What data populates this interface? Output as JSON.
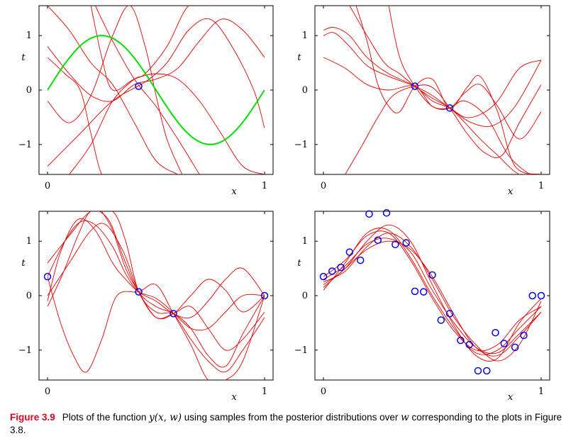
{
  "chart_data": [
    {
      "type": "line",
      "panel": "top-left",
      "xlabel": "x",
      "ylabel": "t",
      "xlim": [
        0,
        1
      ],
      "ylim": [
        -1.55,
        1.55
      ],
      "xticks": [
        "0",
        "1"
      ],
      "yticks": [
        "−1",
        "0",
        "1"
      ],
      "true_function": {
        "color": "#00dd00",
        "formula": "sin(2πx)"
      },
      "points": [
        {
          "x": 0.42,
          "y": 0.07
        }
      ],
      "sample_curves_color": "#e00000",
      "sample_curves": [
        {
          "x": [
            0,
            0.08,
            0.15,
            0.2,
            0.25,
            0.3
          ],
          "y": [
            0.6,
            0.3,
            0.0,
            -0.8,
            -1.55,
            -1.55
          ]
        },
        {
          "x": [
            0,
            0.1,
            0.2,
            0.3,
            0.4,
            0.5,
            0.6
          ],
          "y": [
            1.55,
            1.1,
            0.5,
            0.1,
            -0.6,
            -1.3,
            -1.55
          ]
        },
        {
          "x": [
            0.22,
            0.3,
            0.4,
            0.5,
            0.6,
            0.7
          ],
          "y": [
            1.55,
            0.9,
            0.2,
            -0.3,
            -0.9,
            -1.55
          ]
        },
        {
          "x": [
            0,
            0.15,
            0.3,
            0.45,
            0.55,
            0.65,
            0.75,
            0.85,
            0.95,
            1.0
          ],
          "y": [
            -1.4,
            -0.8,
            -0.2,
            0.15,
            0.5,
            1.1,
            1.3,
            0.8,
            0.0,
            -0.7
          ]
        },
        {
          "x": [
            0,
            0.1,
            0.2,
            0.3,
            0.38,
            0.45,
            0.5,
            0.55,
            0.62
          ],
          "y": [
            -0.2,
            -0.6,
            -0.1,
            1.0,
            1.55,
            0.8,
            -0.1,
            -0.9,
            -1.55
          ]
        },
        {
          "x": [
            0,
            0.1,
            0.2,
            0.3,
            0.4,
            0.5,
            0.6,
            0.7,
            0.8,
            0.9,
            1.0
          ],
          "y": [
            0.8,
            0.3,
            -0.1,
            -0.2,
            0.1,
            0.2,
            0.4,
            0.9,
            1.3,
            1.1,
            0.6
          ]
        },
        {
          "x": [
            0.1,
            0.2,
            0.3,
            0.4,
            0.45,
            0.55,
            0.65,
            0.75
          ],
          "y": [
            -1.55,
            -1.0,
            -0.2,
            0.2,
            0.3,
            0.8,
            1.55,
            1.55
          ]
        },
        {
          "x": [
            0.2,
            0.25,
            0.3,
            0.4,
            0.5,
            0.6,
            0.7,
            0.8,
            0.9,
            1.0
          ],
          "y": [
            1.55,
            0.6,
            0.0,
            0.2,
            0.3,
            0.2,
            -0.2,
            -0.8,
            -1.4,
            -1.55
          ]
        }
      ]
    },
    {
      "type": "line",
      "panel": "top-right",
      "xlabel": "x",
      "ylabel": "t",
      "xlim": [
        0,
        1
      ],
      "ylim": [
        -1.55,
        1.55
      ],
      "xticks": [
        "0",
        "1"
      ],
      "yticks": [
        "−1",
        "0",
        "1"
      ],
      "points": [
        {
          "x": 0.42,
          "y": 0.07
        },
        {
          "x": 0.58,
          "y": -0.33
        }
      ],
      "sample_curves_color": "#e00000",
      "sample_curves": [
        {
          "x": [
            0,
            0.05,
            0.12,
            0.2,
            0.3,
            0.42,
            0.5,
            0.58,
            0.65,
            0.72,
            0.8,
            0.9,
            1.0
          ],
          "y": [
            1.1,
            1.15,
            1.0,
            0.6,
            0.3,
            0.07,
            -0.2,
            -0.33,
            -0.5,
            -0.45,
            -0.2,
            0.4,
            0.55
          ]
        },
        {
          "x": [
            0,
            0.05,
            0.12,
            0.2,
            0.3,
            0.42,
            0.5,
            0.58,
            0.68,
            0.78,
            0.88,
            1.0
          ],
          "y": [
            1.0,
            1.05,
            0.8,
            0.45,
            0.25,
            0.07,
            -0.1,
            -0.33,
            -0.6,
            -0.65,
            -0.3,
            0.55
          ]
        },
        {
          "x": [
            0,
            0.1,
            0.2,
            0.3,
            0.42,
            0.5,
            0.58,
            0.65,
            0.72,
            0.8,
            0.9,
            1.0
          ],
          "y": [
            0.6,
            0.4,
            0.1,
            0.0,
            0.07,
            -0.3,
            -0.33,
            -0.05,
            0.1,
            -0.3,
            -0.9,
            -0.4
          ]
        },
        {
          "x": [
            0.12,
            0.2,
            0.28,
            0.35,
            0.42,
            0.5,
            0.58,
            0.65,
            0.72,
            0.8,
            0.9,
            1.0
          ],
          "y": [
            1.55,
            1.0,
            0.5,
            0.3,
            0.07,
            -0.15,
            -0.33,
            -0.6,
            -0.9,
            -1.2,
            -1.55,
            -1.55
          ]
        },
        {
          "x": [
            0.1,
            0.18,
            0.25,
            0.32,
            0.42,
            0.5,
            0.58,
            0.66,
            0.74,
            0.82,
            0.9,
            1.0
          ],
          "y": [
            -1.55,
            -1.0,
            -0.5,
            -0.1,
            0.07,
            0.05,
            -0.33,
            -0.8,
            -1.15,
            -1.2,
            -0.6,
            0.1
          ]
        },
        {
          "x": [
            0.15,
            0.2,
            0.25,
            0.3,
            0.35,
            0.42,
            0.5,
            0.58,
            0.66,
            0.72,
            0.8,
            0.88,
            1.0
          ],
          "y": [
            1.55,
            0.9,
            0.1,
            -0.3,
            -0.4,
            0.07,
            0.2,
            -0.33,
            0.05,
            0.25,
            -0.4,
            -1.4,
            -1.55
          ]
        },
        {
          "x": [
            0.3,
            0.35,
            0.42,
            0.5,
            0.58,
            0.65,
            0.75,
            0.85,
            0.95,
            1.0
          ],
          "y": [
            1.55,
            0.6,
            0.07,
            -0.3,
            -0.33,
            -0.2,
            -0.5,
            -1.2,
            -1.55,
            -1.55
          ]
        }
      ]
    },
    {
      "type": "line",
      "panel": "bottom-left",
      "xlabel": "x",
      "ylabel": "t",
      "xlim": [
        0,
        1
      ],
      "ylim": [
        -1.55,
        1.55
      ],
      "xticks": [
        "0",
        "1"
      ],
      "yticks": [
        "−1",
        "0",
        "1"
      ],
      "points": [
        {
          "x": 0.0,
          "y": 0.35
        },
        {
          "x": 0.42,
          "y": 0.07
        },
        {
          "x": 0.58,
          "y": -0.33
        },
        {
          "x": 1.0,
          "y": 0.0
        }
      ],
      "sample_curves_color": "#e00000",
      "sample_curves": [
        {
          "x": [
            0,
            0.08,
            0.15,
            0.22,
            0.3,
            0.36,
            0.42,
            0.5,
            0.58,
            0.66,
            0.74,
            0.82,
            0.9,
            1.0
          ],
          "y": [
            0.35,
            1.0,
            1.35,
            1.3,
            0.9,
            0.4,
            0.07,
            -0.1,
            -0.33,
            -0.4,
            -0.1,
            0.3,
            0.5,
            0.0
          ]
        },
        {
          "x": [
            0,
            0.06,
            0.12,
            0.18,
            0.25,
            0.32,
            0.42,
            0.5,
            0.58,
            0.66,
            0.74,
            0.82,
            0.9,
            1.0
          ],
          "y": [
            0.35,
            -0.5,
            -1.1,
            -1.4,
            -0.8,
            0.0,
            0.07,
            0.2,
            -0.33,
            -0.9,
            -1.55,
            -1.55,
            -1.2,
            0.0
          ]
        },
        {
          "x": [
            0,
            0.07,
            0.14,
            0.2,
            0.28,
            0.35,
            0.42,
            0.5,
            0.58,
            0.66,
            0.74,
            0.82,
            0.9,
            1.0
          ],
          "y": [
            -0.2,
            0.4,
            1.1,
            1.55,
            1.4,
            0.7,
            0.07,
            -0.2,
            -0.33,
            -0.6,
            -0.6,
            -0.3,
            0.0,
            0.0
          ]
        },
        {
          "x": [
            0,
            0.1,
            0.2,
            0.27,
            0.35,
            0.42,
            0.5,
            0.58,
            0.66,
            0.74,
            0.82,
            0.9,
            1.0
          ],
          "y": [
            0.0,
            0.6,
            1.2,
            1.3,
            0.8,
            0.07,
            -0.4,
            -0.33,
            0.0,
            0.3,
            0.1,
            -0.3,
            0.0
          ]
        },
        {
          "x": [
            0,
            0.1,
            0.2,
            0.3,
            0.36,
            0.42,
            0.5,
            0.58,
            0.66,
            0.74,
            0.82,
            0.9,
            1.0
          ],
          "y": [
            0.6,
            1.1,
            1.55,
            1.55,
            1.0,
            0.07,
            -0.3,
            -0.33,
            -0.6,
            -1.1,
            -1.3,
            -0.7,
            0.0
          ]
        },
        {
          "x": [
            0,
            0.06,
            0.14,
            0.22,
            0.3,
            0.36,
            0.42,
            0.5,
            0.58,
            0.66,
            0.74,
            0.82,
            0.9,
            1.0
          ],
          "y": [
            -0.1,
            0.8,
            1.4,
            1.2,
            0.6,
            0.3,
            0.07,
            -0.05,
            -0.33,
            -0.8,
            -1.2,
            -1.4,
            -1.0,
            -0.4
          ]
        },
        {
          "x": [
            0.25,
            0.3,
            0.36,
            0.42,
            0.5,
            0.58,
            0.66,
            0.74,
            0.82,
            0.9,
            1.0
          ],
          "y": [
            1.55,
            1.2,
            0.5,
            0.07,
            -0.4,
            -0.33,
            -0.2,
            -0.6,
            -1.0,
            -0.8,
            -0.3
          ]
        }
      ]
    },
    {
      "type": "line",
      "panel": "bottom-right",
      "xlabel": "x",
      "ylabel": "t",
      "xlim": [
        0,
        1
      ],
      "ylim": [
        -1.55,
        1.55
      ],
      "xticks": [
        "0",
        "1"
      ],
      "yticks": [
        "−1",
        "0",
        "1"
      ],
      "points": [
        {
          "x": 0.0,
          "y": 0.35
        },
        {
          "x": 0.04,
          "y": 0.45
        },
        {
          "x": 0.08,
          "y": 0.52
        },
        {
          "x": 0.12,
          "y": 0.8
        },
        {
          "x": 0.17,
          "y": 0.65
        },
        {
          "x": 0.21,
          "y": 1.5
        },
        {
          "x": 0.25,
          "y": 1.02
        },
        {
          "x": 0.29,
          "y": 1.52
        },
        {
          "x": 0.33,
          "y": 0.94
        },
        {
          "x": 0.38,
          "y": 0.97
        },
        {
          "x": 0.42,
          "y": 0.08
        },
        {
          "x": 0.46,
          "y": 0.07
        },
        {
          "x": 0.5,
          "y": 0.38
        },
        {
          "x": 0.54,
          "y": -0.45
        },
        {
          "x": 0.58,
          "y": -0.33
        },
        {
          "x": 0.63,
          "y": -0.82
        },
        {
          "x": 0.67,
          "y": -0.9
        },
        {
          "x": 0.71,
          "y": -1.38
        },
        {
          "x": 0.75,
          "y": -1.38
        },
        {
          "x": 0.79,
          "y": -0.68
        },
        {
          "x": 0.83,
          "y": -0.88
        },
        {
          "x": 0.88,
          "y": -0.95
        },
        {
          "x": 0.92,
          "y": -0.73
        },
        {
          "x": 0.96,
          "y": 0.0
        },
        {
          "x": 1.0,
          "y": 0.0
        }
      ],
      "sample_curves_color": "#e00000",
      "sample_curves": [
        {
          "x": [
            0,
            0.1,
            0.2,
            0.3,
            0.4,
            0.5,
            0.6,
            0.7,
            0.8,
            0.9,
            1.0
          ],
          "y": [
            0.1,
            0.6,
            1.15,
            1.2,
            0.7,
            0.0,
            -0.6,
            -1.05,
            -1.0,
            -0.6,
            -0.2
          ]
        },
        {
          "x": [
            0,
            0.1,
            0.2,
            0.3,
            0.4,
            0.5,
            0.6,
            0.7,
            0.8,
            0.9,
            1.0
          ],
          "y": [
            0.2,
            0.5,
            1.0,
            1.3,
            1.0,
            0.2,
            -0.55,
            -1.1,
            -1.15,
            -0.5,
            -0.05
          ]
        },
        {
          "x": [
            0,
            0.1,
            0.2,
            0.3,
            0.4,
            0.5,
            0.6,
            0.7,
            0.8,
            0.9,
            1.0
          ],
          "y": [
            0.3,
            0.55,
            0.95,
            1.05,
            0.8,
            0.1,
            -0.5,
            -0.95,
            -1.05,
            -0.7,
            -0.3
          ]
        },
        {
          "x": [
            0,
            0.1,
            0.2,
            0.3,
            0.4,
            0.5,
            0.6,
            0.7,
            0.8,
            0.9,
            1.0
          ],
          "y": [
            0.25,
            0.45,
            0.9,
            1.15,
            0.9,
            0.3,
            -0.4,
            -0.9,
            -1.2,
            -0.9,
            -0.1
          ]
        },
        {
          "x": [
            0,
            0.1,
            0.2,
            0.3,
            0.4,
            0.5,
            0.6,
            0.7,
            0.8,
            0.9,
            1.0
          ],
          "y": [
            0.35,
            0.65,
            1.1,
            1.15,
            0.65,
            -0.05,
            -0.65,
            -1.0,
            -0.9,
            -0.45,
            -0.2
          ]
        },
        {
          "x": [
            0,
            0.1,
            0.2,
            0.3,
            0.4,
            0.5,
            0.6,
            0.7,
            0.8,
            0.9,
            1.0
          ],
          "y": [
            0.15,
            0.5,
            0.85,
            1.0,
            0.85,
            0.35,
            -0.35,
            -0.95,
            -1.1,
            -0.75,
            -0.3
          ]
        }
      ]
    }
  ],
  "caption": {
    "label": "Figure 3.9",
    "text_before_math": "Plots of the function ",
    "math_expr": "y(x, w)",
    "text_middle": " using samples from the posterior distributions over ",
    "math_w": "w",
    "text_after": " corresponding to the plots in Figure 3.8."
  }
}
